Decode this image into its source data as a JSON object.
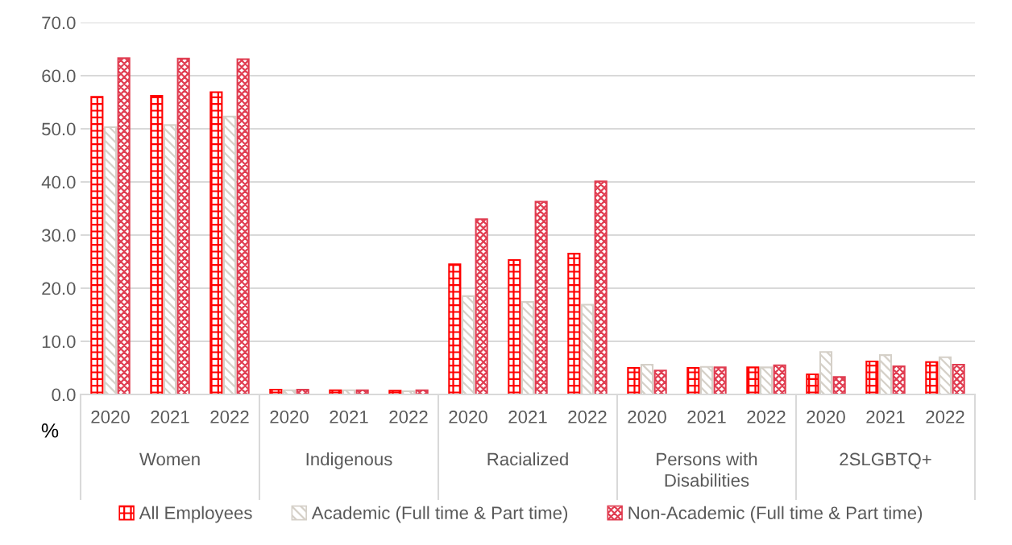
{
  "chart_data": {
    "type": "bar",
    "categories": [
      "2020",
      "2021",
      "2022",
      "2020",
      "2021",
      "2022",
      "2020",
      "2021",
      "2022",
      "2020",
      "2021",
      "2022",
      "2020",
      "2021",
      "2022"
    ],
    "annotations": [
      "Women",
      "Indigenous",
      "Racialized",
      "Persons with\nDisabilities",
      "2SLGBTQ+"
    ],
    "ylabel": "%",
    "series": [
      {
        "name": "All Employees",
        "color": "#ff0000",
        "values": [
          56.0,
          56.2,
          56.9,
          0.9,
          0.8,
          0.7,
          24.5,
          25.3,
          26.5,
          5.0,
          5.0,
          5.1,
          3.8,
          6.2,
          6.1
        ]
      },
      {
        "name": "Academic (Full time & Part time)",
        "color": "#d5d0c8",
        "values": [
          50.3,
          50.7,
          52.3,
          0.8,
          0.8,
          0.6,
          18.5,
          17.4,
          16.9,
          5.6,
          5.2,
          5.1,
          8.0,
          7.4,
          7.0
        ]
      },
      {
        "name": "Non-Academic (Full time & Part time)",
        "color": "#e03c50",
        "values": [
          63.3,
          63.2,
          63.1,
          0.9,
          0.8,
          0.8,
          33.0,
          36.3,
          40.1,
          4.5,
          5.1,
          5.5,
          3.3,
          5.3,
          5.6
        ]
      }
    ],
    "ylim": [
      0,
      70
    ],
    "yticks": [
      {
        "value": 0,
        "label": "0.0"
      },
      {
        "value": 10,
        "label": "10.0"
      },
      {
        "value": 20,
        "label": "20.0"
      },
      {
        "value": 30,
        "label": "30.0"
      },
      {
        "value": 40,
        "label": "40.0"
      },
      {
        "value": 50,
        "label": "50.0"
      },
      {
        "value": 60,
        "label": "60.0"
      },
      {
        "value": 70,
        "label": "70.0"
      }
    ],
    "grid": "y",
    "legend": "bottom"
  }
}
